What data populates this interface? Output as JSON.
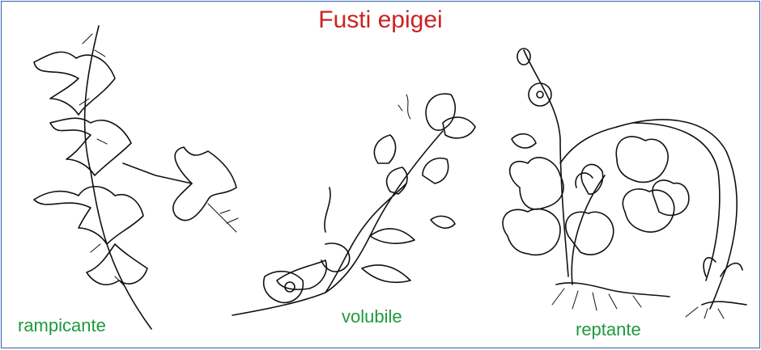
{
  "title": "Fusti epigei",
  "colors": {
    "title": "#cc2222",
    "label": "#1e9a3c",
    "border": "#2e5fae"
  },
  "plants": [
    {
      "label": "rampicante",
      "illustration": "ivy-climbing-stem"
    },
    {
      "label": "volubile",
      "illustration": "twining-bindweed-stem"
    },
    {
      "label": "reptante",
      "illustration": "strawberry-creeping-stem"
    }
  ]
}
